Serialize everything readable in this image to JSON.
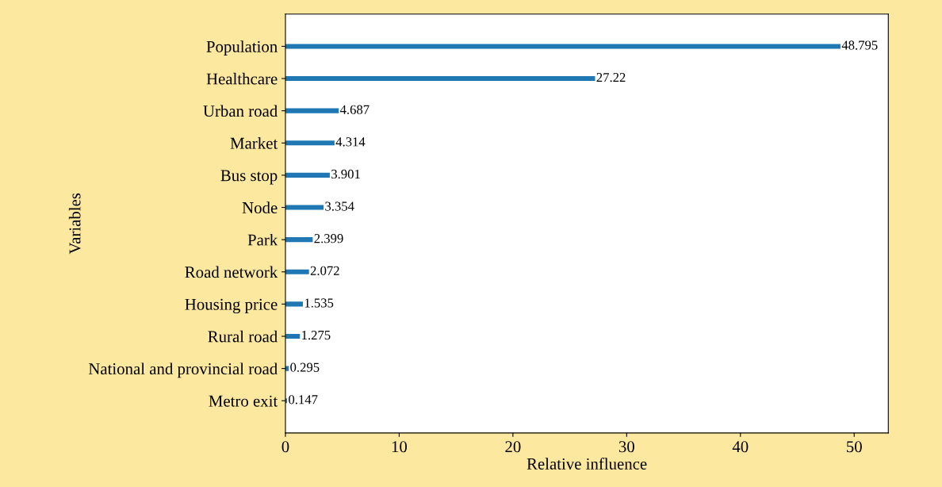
{
  "chart_data": {
    "type": "bar",
    "orientation": "horizontal",
    "xlabel": "Relative influence",
    "ylabel": "Variables",
    "categories": [
      "Population",
      "Healthcare",
      "Urban road",
      "Market",
      "Bus stop",
      "Node",
      "Park",
      "Road network",
      "Housing price",
      "Rural road",
      "National and provincial road",
      "Metro exit"
    ],
    "values": [
      48.795,
      27.22,
      4.687,
      4.314,
      3.901,
      3.354,
      2.399,
      2.072,
      1.535,
      1.275,
      0.295,
      0.147
    ],
    "color": "#1f77b4",
    "xlim": [
      0,
      53
    ],
    "xticks": [
      0,
      10,
      20,
      30,
      40,
      50
    ],
    "data_labels": true,
    "grid": false
  }
}
